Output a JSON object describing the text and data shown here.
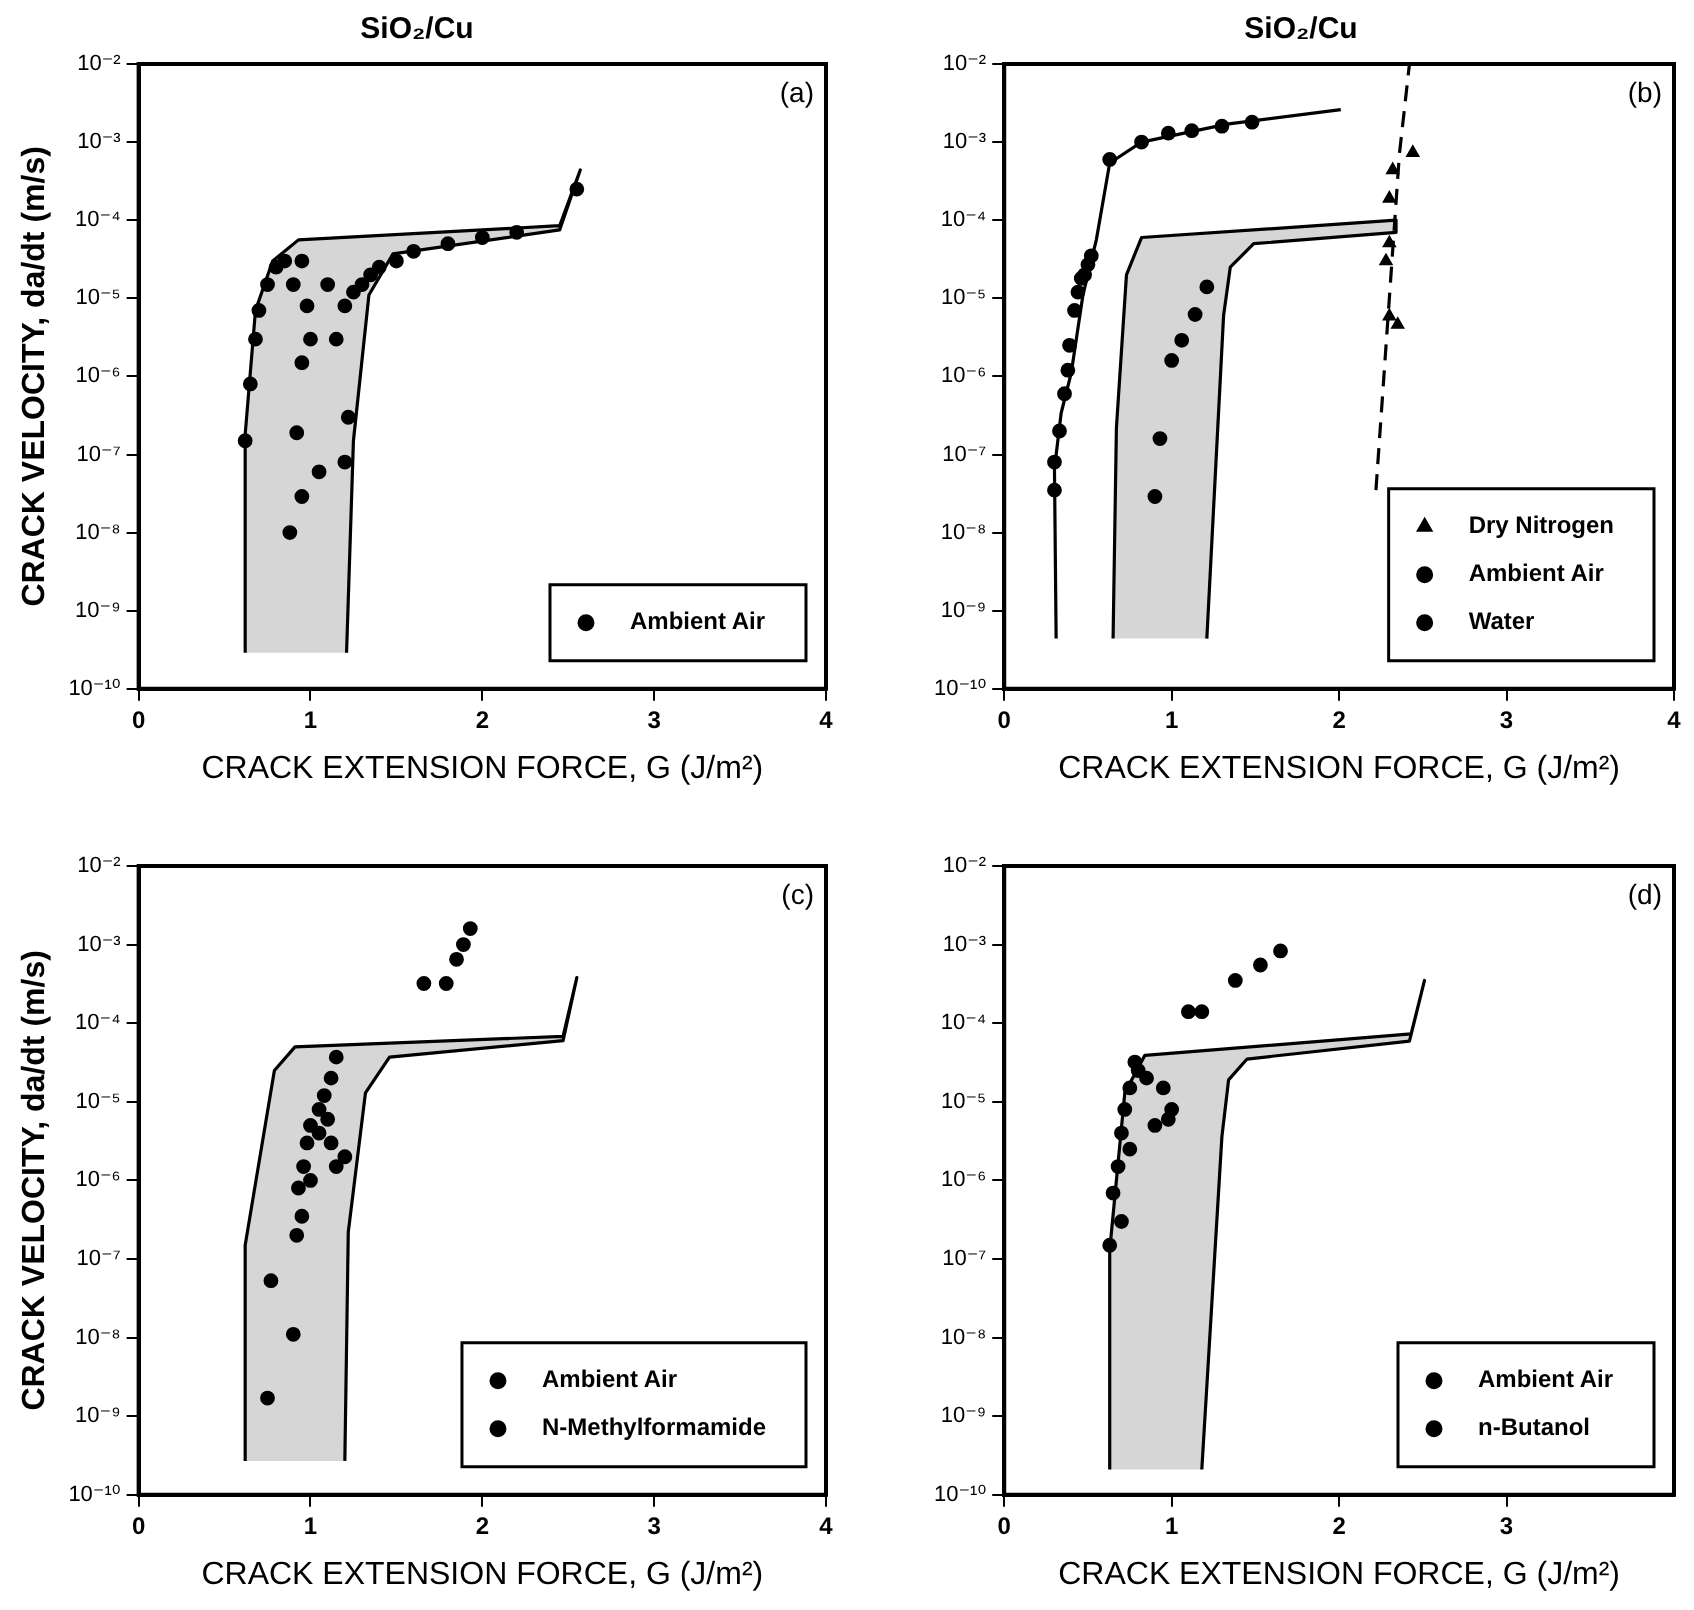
{
  "chart_data": [
    {
      "type": "scatter",
      "title": "SiO₂/Cu",
      "xlabel": "CRACK EXTENSION FORCE, G (J/m²)",
      "ylabel": "CRACK VELOCITY, da/dt (m/s)",
      "xlim": [
        0,
        4
      ],
      "xticks": [
        0,
        1,
        2,
        3,
        4
      ],
      "ylim": [
        1e-10,
        0.01
      ],
      "yticks": [
        {
          "value": 1e-10,
          "label": "10⁻¹⁰"
        },
        {
          "value": 1e-09,
          "label": "10⁻⁹"
        },
        {
          "value": 1e-08,
          "label": "10⁻⁸"
        },
        {
          "value": 1e-07,
          "label": "10⁻⁷"
        },
        {
          "value": 1e-06,
          "label": "10⁻⁶"
        },
        {
          "value": 1e-05,
          "label": "10⁻⁵"
        },
        {
          "value": 0.0001,
          "label": "10⁻⁴"
        },
        {
          "value": 0.001,
          "label": "10⁻³"
        },
        {
          "value": 0.01,
          "label": "10⁻²"
        }
      ],
      "log": "y",
      "legend": "bottom right",
      "annotations": [
        "(a)"
      ],
      "series": [
        {
          "type": "area",
          "color": "#000000",
          "x": [
            0.62,
            0.62,
            0.68,
            0.78,
            0.93,
            2.45,
            2.57,
            2.45,
            1.48,
            1.34,
            1.25,
            1.21
          ],
          "values": [
            2.9e-10,
            1.8e-07,
            7e-06,
            3e-05,
            5.6e-05,
            8.5e-05,
            0.00044,
            7.5e-05,
            3.7e-05,
            1.1e-05,
            1.5e-07,
            2.9e-10
          ]
        },
        {
          "name": "Ambient Air",
          "color": "#000000",
          "marker": "circle",
          "x": [
            0.62,
            0.65,
            0.68,
            0.7,
            0.75,
            0.8,
            0.85,
            0.95,
            0.9,
            0.98,
            1.0,
            0.95,
            0.92,
            0.95,
            0.88,
            1.05,
            1.2,
            1.22,
            1.15,
            1.2,
            1.25,
            1.35,
            1.4,
            1.5,
            1.6,
            1.8,
            2.0,
            2.2,
            2.55,
            1.1,
            1.3
          ],
          "values": [
            1.5e-07,
            8e-07,
            3e-06,
            7e-06,
            1.5e-05,
            2.5e-05,
            3e-05,
            3e-05,
            1.5e-05,
            8e-06,
            3e-06,
            1.5e-06,
            1.9e-07,
            2.9e-08,
            1e-08,
            6e-08,
            8e-08,
            3e-07,
            3e-06,
            8e-06,
            1.2e-05,
            2e-05,
            2.5e-05,
            3e-05,
            4e-05,
            5e-05,
            6e-05,
            7e-05,
            0.00025,
            1.5e-05,
            1.5e-05
          ]
        }
      ]
    },
    {
      "type": "scatter",
      "title": "SiO₂/Cu",
      "xlabel": "CRACK EXTENSION FORCE, G (J/m²)",
      "xlim": [
        0,
        4
      ],
      "xticks": [
        0,
        1,
        2,
        3,
        4
      ],
      "ylim": [
        1e-10,
        0.01
      ],
      "yticks": [
        {
          "value": 1e-10,
          "label": "10⁻¹⁰"
        },
        {
          "value": 1e-09,
          "label": "10⁻⁹"
        },
        {
          "value": 1e-08,
          "label": "10⁻⁸"
        },
        {
          "value": 1e-07,
          "label": "10⁻⁷"
        },
        {
          "value": 1e-06,
          "label": "10⁻⁶"
        },
        {
          "value": 1e-05,
          "label": "10⁻⁵"
        },
        {
          "value": 0.0001,
          "label": "10⁻⁴"
        },
        {
          "value": 0.001,
          "label": "10⁻³"
        },
        {
          "value": 0.01,
          "label": "10⁻²"
        }
      ],
      "log": "y",
      "legend": "bottom right",
      "annotations": [
        "(b)"
      ],
      "series": [
        {
          "type": "area",
          "color": "#000000",
          "x": [
            0.65,
            0.67,
            0.73,
            0.82,
            2.34,
            2.34,
            1.49,
            1.35,
            1.31,
            1.21
          ],
          "values": [
            4.4e-10,
            2.2e-07,
            2e-05,
            6e-05,
            0.0001,
            7e-05,
            5e-05,
            2.5e-05,
            6e-06,
            4.4e-10
          ]
        },
        {
          "type": "line",
          "color": "#000000",
          "marker": "none",
          "x": [
            0.31,
            0.3,
            0.34,
            0.4,
            0.47,
            0.55,
            0.63,
            0.82,
            1.33,
            2.01
          ],
          "values": [
            4.4e-10,
            6.6e-08,
            3.4e-07,
            1.1e-06,
            1.1e-05,
            5.6e-05,
            0.00054,
            0.001,
            0.0017,
            0.0026
          ]
        },
        {
          "type": "line",
          "color": "#000000",
          "marker": "none",
          "line_style": "dashed",
          "x": [
            2.22,
            2.3,
            2.36,
            2.42
          ],
          "values": [
            3.5e-08,
            1e-05,
            0.0007,
            0.01
          ]
        },
        {
          "name": "Dry Nitrogen",
          "color": "#000000",
          "marker": "triangle",
          "x": [
            2.3,
            2.28,
            2.3,
            2.32,
            2.44,
            2.3,
            2.35
          ],
          "values": [
            5.1e-05,
            3e-05,
            0.00019,
            0.00044,
            0.00073,
            5.9e-06,
            4.6e-06
          ]
        },
        {
          "name": "Ambient Air",
          "color": "#000000",
          "marker": "circle",
          "x": [
            0.9,
            0.93,
            1.0,
            1.06,
            1.14,
            1.21
          ],
          "values": [
            2.9e-08,
            1.6e-07,
            1.6e-06,
            2.9e-06,
            6.2e-06,
            1.4e-05
          ]
        },
        {
          "name": "Water",
          "color": "#000000",
          "marker": "circle",
          "x": [
            0.3,
            0.3,
            0.33,
            0.36,
            0.38,
            0.39,
            0.42,
            0.44,
            0.46,
            0.48,
            0.5,
            0.52,
            0.63,
            0.82,
            0.98,
            1.12,
            1.3,
            1.48
          ],
          "values": [
            3.5e-08,
            8e-08,
            2e-07,
            6e-07,
            1.2e-06,
            2.5e-06,
            7e-06,
            1.2e-05,
            1.8e-05,
            2e-05,
            2.7e-05,
            3.5e-05,
            0.0006,
            0.001,
            0.0013,
            0.0014,
            0.0016,
            0.0018
          ]
        }
      ]
    },
    {
      "type": "scatter",
      "xlabel": "CRACK EXTENSION FORCE, G (J/m²)",
      "ylabel": "CRACK VELOCITY, da/dt (m/s)",
      "xlim": [
        0,
        4
      ],
      "xticks": [
        0,
        1,
        2,
        3,
        4
      ],
      "ylim": [
        1e-10,
        0.01
      ],
      "yticks": [
        {
          "value": 1e-10,
          "label": "10⁻¹⁰"
        },
        {
          "value": 1e-09,
          "label": "10⁻⁹"
        },
        {
          "value": 1e-08,
          "label": "10⁻⁸"
        },
        {
          "value": 1e-07,
          "label": "10⁻⁷"
        },
        {
          "value": 1e-06,
          "label": "10⁻⁶"
        },
        {
          "value": 1e-05,
          "label": "10⁻⁵"
        },
        {
          "value": 0.0001,
          "label": "10⁻⁴"
        },
        {
          "value": 0.001,
          "label": "10⁻³"
        },
        {
          "value": 0.01,
          "label": "10⁻²"
        }
      ],
      "log": "y",
      "legend": "bottom right",
      "annotations": [
        "(c)"
      ],
      "series": [
        {
          "type": "area",
          "color": "#000000",
          "x": [
            0.62,
            0.62,
            0.79,
            0.91,
            2.47,
            2.55,
            2.47,
            1.46,
            1.32,
            1.22,
            1.2
          ],
          "values": [
            2.7e-10,
            1.5e-07,
            2.5e-05,
            5e-05,
            6.8e-05,
            0.00038,
            6e-05,
            3.7e-05,
            1.3e-05,
            2.2e-07,
            2.7e-10
          ]
        },
        {
          "name": "Ambient Air",
          "color": "#000000",
          "marker": "circle",
          "x": [
            0.77,
            0.9,
            0.75,
            0.92,
            0.95,
            0.93,
            0.96,
            0.98,
            1.0,
            1.05,
            1.08,
            1.1,
            1.12,
            1.15,
            1.2,
            1.05,
            1.0,
            1.12,
            1.15
          ],
          "values": [
            5.3e-08,
            1.1e-08,
            1.7e-09,
            2e-07,
            3.5e-07,
            8e-07,
            1.5e-06,
            3e-06,
            5e-06,
            8e-06,
            1.2e-05,
            6e-06,
            3e-06,
            1.5e-06,
            2e-06,
            4e-06,
            1e-06,
            2e-05,
            3.7e-05
          ]
        },
        {
          "name": "N-Methylformamide",
          "color": "#000000",
          "marker": "circle",
          "x": [
            1.66,
            1.79,
            1.85,
            1.89,
            1.93
          ],
          "values": [
            0.00032,
            0.00032,
            0.00065,
            0.001,
            0.0016
          ]
        }
      ]
    },
    {
      "type": "scatter",
      "xlabel": "CRACK EXTENSION FORCE, G (J/m²)",
      "xlim": [
        0,
        4
      ],
      "xticks": [
        0,
        1,
        2,
        3
      ],
      "ylim": [
        1e-10,
        0.01
      ],
      "yticks": [
        {
          "value": 1e-10,
          "label": "10⁻¹⁰"
        },
        {
          "value": 1e-09,
          "label": "10⁻⁹"
        },
        {
          "value": 1e-08,
          "label": "10⁻⁸"
        },
        {
          "value": 1e-07,
          "label": "10⁻⁷"
        },
        {
          "value": 1e-06,
          "label": "10⁻⁶"
        },
        {
          "value": 1e-05,
          "label": "10⁻⁵"
        },
        {
          "value": 0.0001,
          "label": "10⁻⁴"
        },
        {
          "value": 0.001,
          "label": "10⁻³"
        },
        {
          "value": 0.01,
          "label": "10⁻²"
        }
      ],
      "log": "y",
      "legend": "bottom right",
      "annotations": [
        "(d)"
      ],
      "series": [
        {
          "type": "area",
          "color": "#000000",
          "x": [
            0.63,
            0.63,
            0.72,
            0.84,
            2.43,
            2.51,
            2.42,
            1.45,
            1.34,
            1.3,
            1.18
          ],
          "values": [
            2.1e-10,
            1.3e-07,
            1.3e-05,
            3.9e-05,
            7.3e-05,
            0.00035,
            5.9e-05,
            3.5e-05,
            1.9e-05,
            3.6e-06,
            2.1e-10
          ]
        },
        {
          "name": "Ambient Air",
          "color": "#000000",
          "marker": "circle",
          "x": [
            0.63,
            0.65,
            0.7,
            0.68,
            0.7,
            0.72,
            0.75,
            0.8,
            0.78,
            0.85,
            0.95,
            0.98,
            1.0,
            0.9,
            0.75
          ],
          "values": [
            1.5e-07,
            6.9e-07,
            3e-07,
            1.5e-06,
            4e-06,
            8e-06,
            1.5e-05,
            2.5e-05,
            3.2e-05,
            2e-05,
            1.5e-05,
            6e-06,
            8e-06,
            5e-06,
            2.5e-06
          ]
        },
        {
          "name": "n-Butanol",
          "color": "#000000",
          "marker": "circle",
          "x": [
            1.1,
            1.18,
            1.38,
            1.53,
            1.65
          ],
          "values": [
            0.00014,
            0.00014,
            0.00035,
            0.00055,
            0.00083
          ]
        }
      ]
    }
  ]
}
